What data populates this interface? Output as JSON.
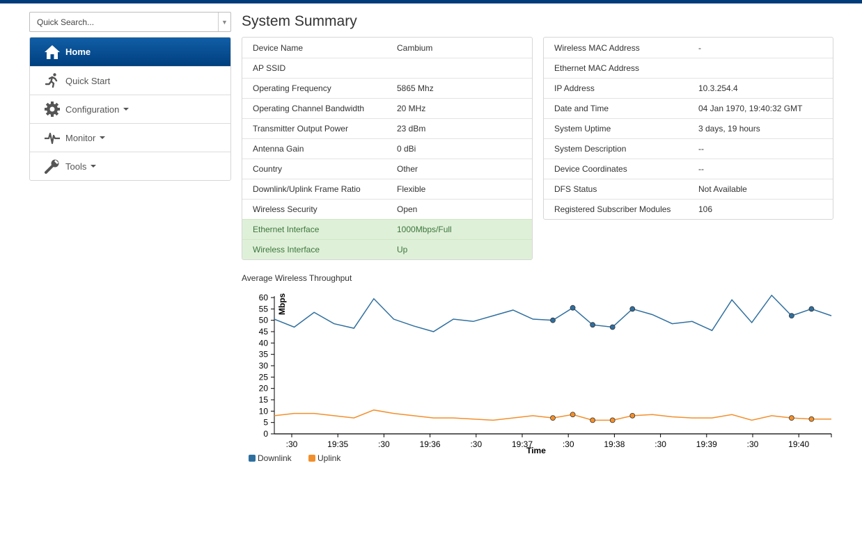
{
  "search": {
    "placeholder": "Quick Search..."
  },
  "sidebar": {
    "items": [
      {
        "label": "Home",
        "icon": "home-icon",
        "active": true,
        "dropdown": false
      },
      {
        "label": "Quick Start",
        "icon": "running-person-icon",
        "active": false,
        "dropdown": false
      },
      {
        "label": "Configuration",
        "icon": "gear-icon",
        "active": false,
        "dropdown": true
      },
      {
        "label": "Monitor",
        "icon": "pulse-icon",
        "active": false,
        "dropdown": true
      },
      {
        "label": "Tools",
        "icon": "wrench-icon",
        "active": false,
        "dropdown": true
      }
    ]
  },
  "main": {
    "title": "System Summary",
    "left_table": [
      {
        "label": "Device Name",
        "value": "Cambium"
      },
      {
        "label": "AP SSID",
        "value": ""
      },
      {
        "label": "Operating Frequency",
        "value": "5865 Mhz"
      },
      {
        "label": "Operating Channel Bandwidth",
        "value": "20 MHz"
      },
      {
        "label": "Transmitter Output Power",
        "value": "23 dBm"
      },
      {
        "label": "Antenna Gain",
        "value": "0 dBi"
      },
      {
        "label": "Country",
        "value": "Other"
      },
      {
        "label": "Downlink/Uplink Frame Ratio",
        "value": "Flexible"
      },
      {
        "label": "Wireless Security",
        "value": "Open"
      },
      {
        "label": "Ethernet Interface",
        "value": "1000Mbps/Full",
        "status": "ok"
      },
      {
        "label": "Wireless Interface",
        "value": "Up",
        "status": "ok"
      }
    ],
    "right_table": [
      {
        "label": "Wireless MAC Address",
        "value": "-"
      },
      {
        "label": "Ethernet MAC Address",
        "value": ""
      },
      {
        "label": "IP Address",
        "value": "10.3.254.4"
      },
      {
        "label": "Date and Time",
        "value": "04 Jan 1970, 19:40:32 GMT"
      },
      {
        "label": "System Uptime",
        "value": "3 days, 19 hours"
      },
      {
        "label": "System Description",
        "value": "--"
      },
      {
        "label": "Device Coordinates",
        "value": "--"
      },
      {
        "label": "DFS Status",
        "value": "Not Available"
      },
      {
        "label": "Registered Subscriber Modules",
        "value": "106"
      }
    ],
    "chart_title": "Average Wireless Throughput"
  },
  "chart_data": {
    "type": "line",
    "xlabel": "Time",
    "ylabel": "Mbps",
    "ylim": [
      0,
      60
    ],
    "yticks": [
      0,
      5,
      10,
      15,
      20,
      25,
      30,
      35,
      40,
      45,
      50,
      55,
      60
    ],
    "xtick_labels": [
      ":30",
      "19:35",
      ":30",
      "19:36",
      ":30",
      "19:37",
      ":30",
      "19:38",
      ":30",
      "19:39",
      ":30",
      "19:40"
    ],
    "legend_position": "bottom-left",
    "series": [
      {
        "name": "Downlink",
        "color": "#2f6f9f",
        "values": [
          50.5,
          47,
          53.5,
          48.5,
          46.5,
          59.5,
          50.5,
          47.5,
          45,
          50.5,
          49.5,
          52,
          54.5,
          50.5,
          50,
          55.5,
          48,
          47,
          55,
          52.5,
          48.5,
          49.5,
          45.5,
          59,
          49,
          61,
          52,
          55,
          52
        ],
        "markers": [
          14,
          15,
          16,
          17,
          18,
          26,
          27
        ]
      },
      {
        "name": "Uplink",
        "color": "#f28f2c",
        "values": [
          8,
          9,
          9,
          8,
          7,
          10.5,
          9,
          8,
          7,
          7,
          6.5,
          6,
          7,
          8,
          7,
          8.5,
          6,
          6,
          8,
          8.5,
          7.5,
          7,
          7,
          8.5,
          6,
          8,
          7,
          6.5,
          6.5
        ],
        "markers": [
          14,
          15,
          16,
          17,
          18,
          26,
          27
        ]
      }
    ]
  }
}
